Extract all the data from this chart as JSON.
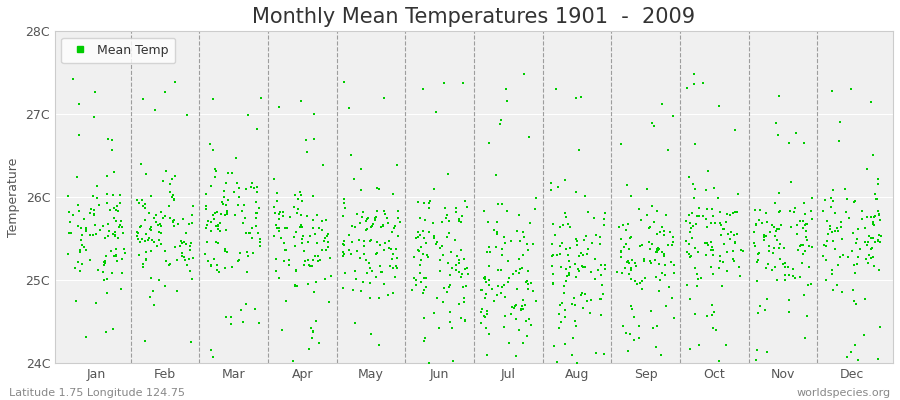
{
  "title": "Monthly Mean Temperatures 1901  -  2009",
  "ylabel": "Temperature",
  "subtitle": "Latitude 1.75 Longitude 124.75",
  "watermark": "worldspecies.org",
  "legend_label": "Mean Temp",
  "dot_color": "#00cc00",
  "dot_size": 2.5,
  "ylim_min": 24.0,
  "ylim_max": 28.0,
  "yticks": [
    24,
    25,
    26,
    27,
    28
  ],
  "ytick_labels": [
    "24C",
    "25C",
    "26C",
    "27C",
    "28C"
  ],
  "xlim_min": 0.4,
  "xlim_max": 12.6,
  "xtick_positions": [
    1,
    2,
    3,
    4,
    5,
    6,
    7,
    8,
    9,
    10,
    11,
    12
  ],
  "xtick_labels": [
    "Jan",
    "Feb",
    "Mar",
    "Apr",
    "May",
    "Jun",
    "Jul",
    "Aug",
    "Sep",
    "Oct",
    "Nov",
    "Dec"
  ],
  "vline_positions": [
    1.5,
    2.5,
    3.5,
    4.5,
    5.5,
    6.5,
    7.5,
    8.5,
    9.5,
    10.5,
    11.5
  ],
  "plot_bg_color": "#f0f0f0",
  "title_fontsize": 15,
  "axis_label_fontsize": 9,
  "tick_label_fontsize": 9,
  "legend_fontsize": 9,
  "month_params": [
    {
      "mean": 25.55,
      "std": 0.35
    },
    {
      "mean": 25.6,
      "std": 0.35
    },
    {
      "mean": 25.7,
      "std": 0.4
    },
    {
      "mean": 25.55,
      "std": 0.35
    },
    {
      "mean": 25.5,
      "std": 0.35
    },
    {
      "mean": 25.3,
      "std": 0.4
    },
    {
      "mean": 25.1,
      "std": 0.45
    },
    {
      "mean": 25.2,
      "std": 0.4
    },
    {
      "mean": 25.35,
      "std": 0.38
    },
    {
      "mean": 25.5,
      "std": 0.35
    },
    {
      "mean": 25.45,
      "std": 0.35
    },
    {
      "mean": 25.5,
      "std": 0.38
    }
  ]
}
